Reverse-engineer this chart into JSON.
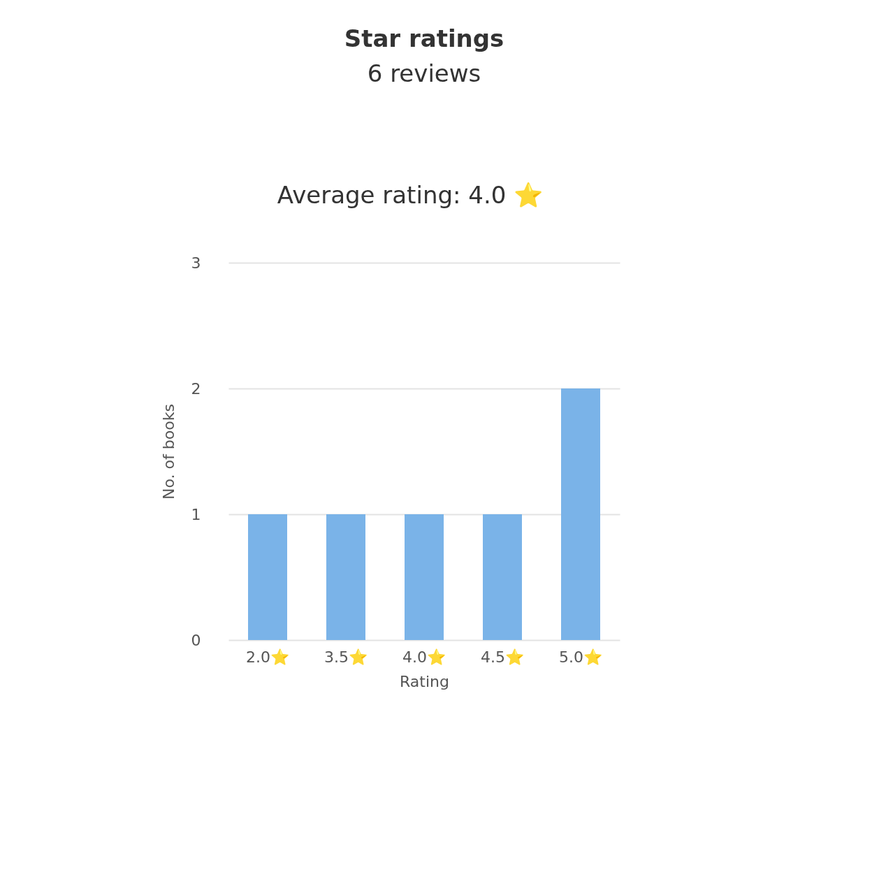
{
  "chart_data": {
    "type": "bar",
    "title": "Star ratings",
    "subtitle": "6 reviews",
    "annotations": [
      "Average rating: 4.0 ⭐"
    ],
    "categories": [
      "2.0⭐",
      "3.5⭐",
      "4.0⭐",
      "4.5⭐",
      "5.0⭐"
    ],
    "values": [
      1,
      1,
      1,
      1,
      2
    ],
    "color": "#7ab3e8",
    "xlabel": "Rating",
    "ylabel": "No. of books",
    "ylim": [
      0,
      3
    ],
    "yticks": [
      0,
      1,
      2,
      3
    ],
    "grid": "y"
  }
}
